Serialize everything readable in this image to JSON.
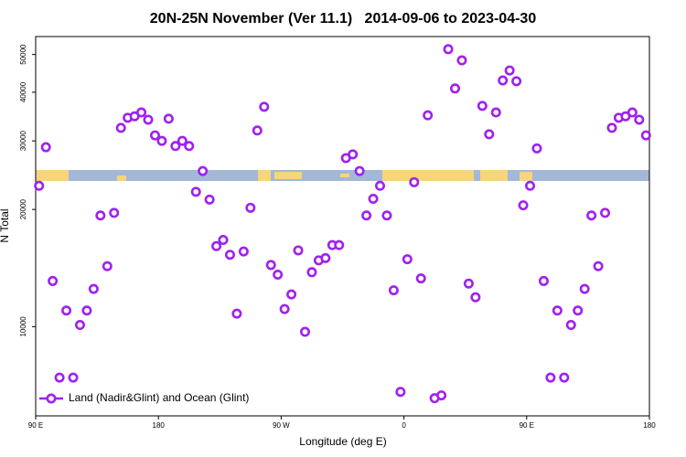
{
  "chart_data": {
    "type": "scatter",
    "title": "20N-25N November (Ver 11.1)   2014-09-06 to 2023-04-30",
    "xlabel": "Longitude (deg E)",
    "ylabel": "N Total",
    "xlim": [
      90,
      540
    ],
    "xticks": [
      {
        "value": 90,
        "label": "90 E"
      },
      180,
      {
        "value": 270,
        "label": "90 W"
      },
      {
        "value": 360,
        "label": "0"
      },
      {
        "value": 450,
        "label": "90 E"
      },
      {
        "value": 540,
        "label": "180"
      }
    ],
    "ylim": [
      5900,
      55600
    ],
    "yscale": "log",
    "yticks": [
      10000,
      20000,
      30000,
      40000,
      50000
    ],
    "legend": "lower left",
    "x": [
      92.5,
      97.5,
      102.5,
      107.5,
      112.5,
      117.5,
      122.5,
      127.5,
      132.5,
      137.5,
      142.5,
      147.5,
      152.5,
      157.5,
      162.5,
      167.5,
      172.5,
      177.5,
      182.5,
      187.5,
      192.5,
      197.5,
      202.5,
      207.5,
      212.5,
      217.5,
      222.5,
      227.5,
      232.5,
      237.5,
      242.5,
      247.5,
      252.5,
      257.5,
      262.5,
      267.5,
      272.5,
      277.5,
      282.5,
      287.5,
      292.5,
      297.5,
      302.5,
      307.5,
      312.5,
      317.5,
      322.5,
      327.5,
      332.5,
      337.5,
      342.5,
      347.5,
      352.5,
      357.5,
      362.5,
      367.5,
      372.5,
      377.5,
      382.5,
      387.5,
      392.5,
      397.5,
      402.5,
      407.5,
      412.5,
      417.5,
      422.5,
      427.5,
      432.5,
      437.5,
      442.5,
      447.5,
      452.5,
      457.5,
      462.5,
      467.5,
      472.5,
      477.5,
      482.5,
      487.5,
      492.5,
      497.5,
      502.5,
      507.5,
      512.5,
      517.5,
      522.5,
      527.5,
      532.5,
      537.5
    ],
    "series": [
      {
        "name": "Land (Nadir&Glint) and Ocean (Glint)",
        "color": "#a020f0",
        "values": [
          23000,
          28900,
          13100,
          7400,
          11000,
          7400,
          10100,
          11000,
          12500,
          19300,
          14300,
          19600,
          32400,
          34400,
          34700,
          35500,
          34000,
          31000,
          30000,
          34200,
          29100,
          30000,
          29100,
          22200,
          25100,
          21200,
          16100,
          16700,
          15300,
          10800,
          15600,
          20200,
          31900,
          36700,
          14400,
          13600,
          11100,
          12100,
          15700,
          9700,
          13800,
          14800,
          15000,
          16200,
          16200,
          27100,
          27700,
          25100,
          19300,
          21300,
          23000,
          19300,
          12400,
          6800,
          14900,
          23500,
          13300,
          34900,
          6550,
          6660,
          51600,
          40900,
          48300,
          12900,
          11900,
          36900,
          31200,
          35500,
          42900,
          45500,
          42700,
          20500,
          23000,
          28700,
          13100,
          7400,
          11000,
          7400,
          10100,
          11000,
          12500,
          19300,
          14300,
          19600,
          32400,
          34400,
          34700,
          35500,
          34000,
          31000
        ]
      }
    ]
  }
}
